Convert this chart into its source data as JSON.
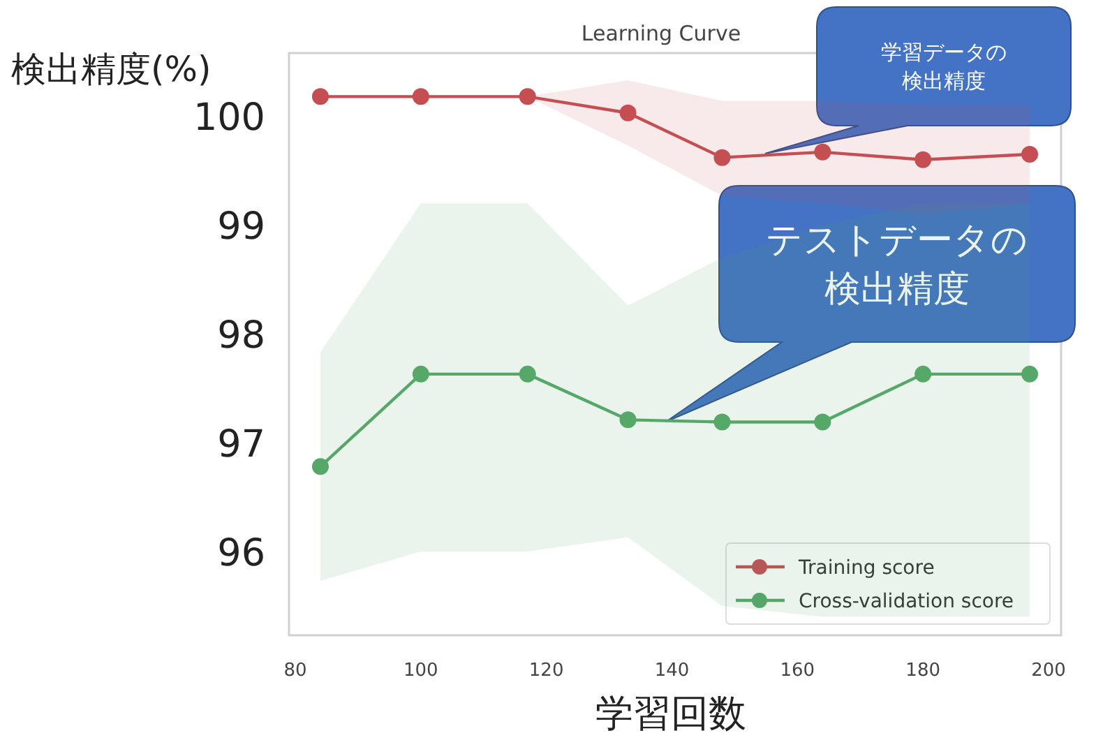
{
  "chart_data": {
    "type": "line",
    "title": "Learning Curve",
    "xlabel": "学習回数",
    "ylabel": "検出精度(%)",
    "xlim": [
      79,
      202
    ],
    "ylim": [
      95.23,
      100.58
    ],
    "xticks": [
      80,
      100,
      120,
      140,
      160,
      180,
      200
    ],
    "yticks": [
      96,
      97,
      98,
      99,
      100
    ],
    "legend": "bottom right",
    "marker": "circle",
    "line_style": "solid",
    "series": [
      {
        "name": "Training score",
        "color": "#c44e52",
        "x": [
          84,
          100,
          117,
          133,
          148,
          164,
          180,
          197
        ],
        "values": [
          100.18,
          100.18,
          100.18,
          100.03,
          99.62,
          99.67,
          99.6,
          99.65
        ],
        "lower": [
          100.18,
          100.18,
          100.18,
          99.73,
          99.27,
          99.2,
          99.1,
          99.2
        ],
        "upper": [
          100.18,
          100.18,
          100.18,
          100.33,
          100.14,
          100.14,
          100.1,
          100.1
        ]
      },
      {
        "name": "Cross-validation score",
        "color": "#55a868",
        "x": [
          84,
          100,
          117,
          133,
          148,
          164,
          180,
          197
        ],
        "values": [
          96.78,
          97.63,
          97.63,
          97.21,
          97.19,
          97.19,
          97.63,
          97.63
        ],
        "lower": [
          95.73,
          96.0,
          96.0,
          96.13,
          95.5,
          95.4,
          95.4,
          95.4
        ],
        "upper": [
          97.83,
          99.2,
          99.2,
          98.26,
          98.7,
          99.0,
          99.2,
          99.2
        ]
      }
    ],
    "annotations": [
      "学習データの検出精度",
      "テストデータの検出精度"
    ]
  }
}
